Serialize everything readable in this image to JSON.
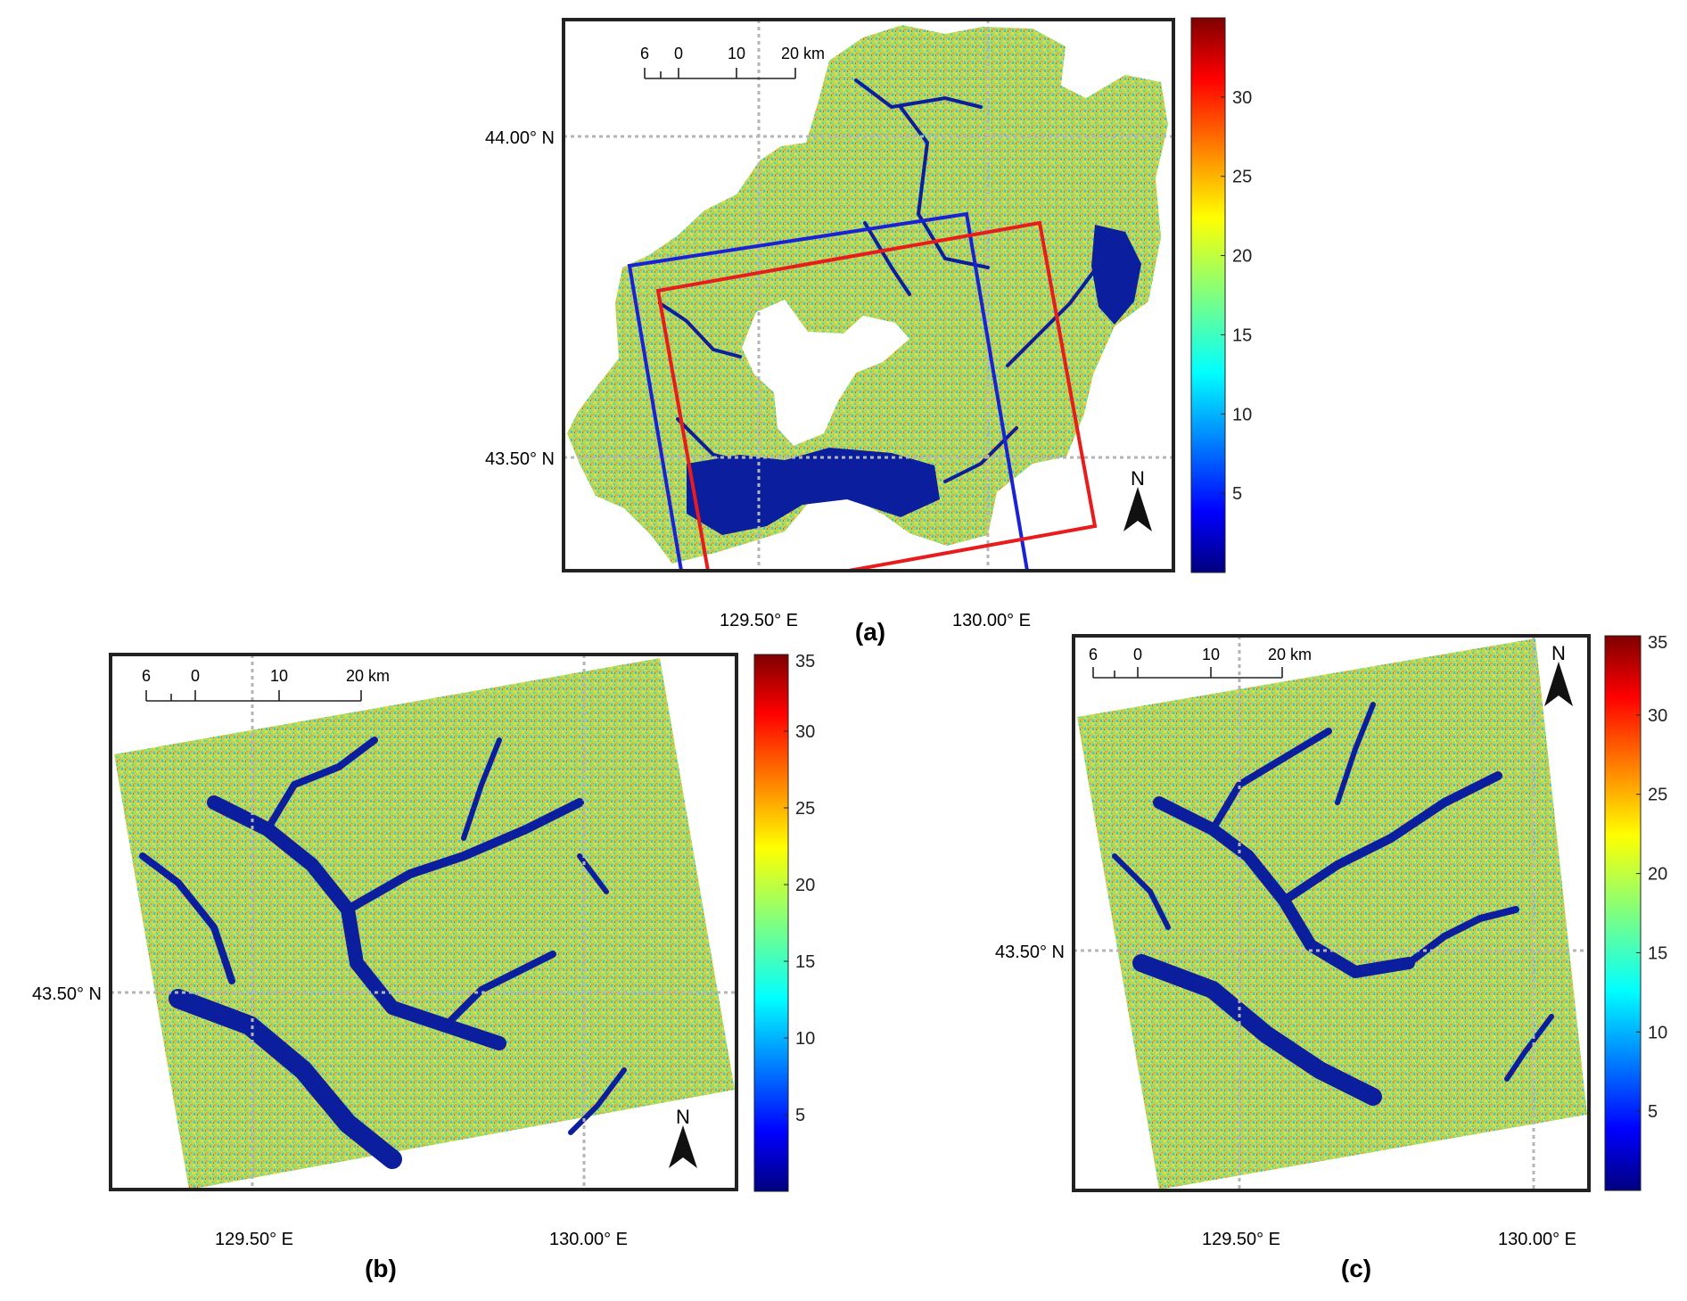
{
  "colors": {
    "frame": "#222222",
    "grid": "#b5b5b5",
    "blue_box": "#1a22d8",
    "red_box": "#e81c1c",
    "water": "#0a1e9e"
  },
  "colormap": "jet",
  "colorbar_range": [
    0,
    35
  ],
  "north_arrow_label": "N",
  "panels": [
    {
      "label": "(a)",
      "lat_labels": [
        "44.00° N",
        "43.50° N"
      ],
      "lon_labels": [
        "129.50° E",
        "130.00° E"
      ],
      "scalebar_labels": [
        "6",
        "0",
        "10",
        "20 km"
      ],
      "colorbar_ticks": [
        "5",
        "10",
        "15",
        "20",
        "25",
        "30"
      ],
      "overlay_boxes": [
        "blue",
        "red"
      ]
    },
    {
      "label": "(b)",
      "lat_labels": [
        "43.50° N"
      ],
      "lon_labels": [
        "129.50° E",
        "130.00° E"
      ],
      "scalebar_labels": [
        "6",
        "0",
        "10",
        "20 km"
      ],
      "colorbar_ticks": [
        "5",
        "10",
        "15",
        "20",
        "25",
        "30",
        "35"
      ]
    },
    {
      "label": "(c)",
      "lat_labels": [
        "43.50° N"
      ],
      "lon_labels": [
        "129.50° E",
        "130.00° E"
      ],
      "scalebar_labels": [
        "6",
        "0",
        "10",
        "20 km"
      ],
      "colorbar_ticks": [
        "5",
        "10",
        "15",
        "20",
        "25",
        "30",
        "35"
      ]
    }
  ]
}
